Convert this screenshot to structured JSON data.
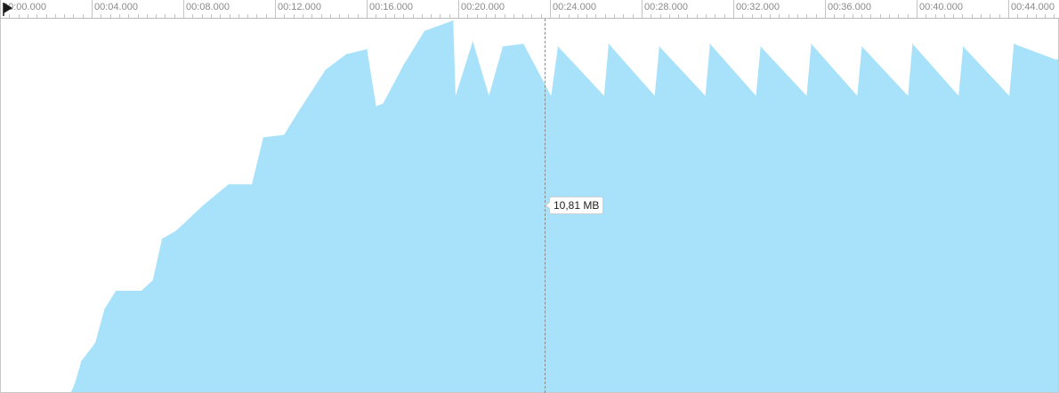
{
  "ruler": {
    "labels": [
      "00:00.000",
      "00:04.000",
      "00:08.000",
      "00:12.000",
      "00:16.000",
      "00:20.000",
      "00:24.000",
      "00:28.000",
      "00:32.000",
      "00:36.000",
      "00:40.000",
      "00:44.000"
    ]
  },
  "cursor": {
    "time_seconds": 23.6,
    "value_label": "10,81 MB"
  },
  "chart_data": {
    "type": "area",
    "series_color": "#a8e2fa",
    "cursor_color": "#8a8a8a",
    "x_unit": "seconds",
    "xlim": [
      0,
      46.0
    ],
    "ylim": [
      0,
      14.3
    ],
    "x": [
      3.05,
      3.2,
      3.5,
      4.1,
      4.5,
      5.0,
      6.1,
      6.6,
      7.0,
      7.6,
      8.8,
      9.9,
      10.9,
      11.4,
      12.3,
      13.0,
      14.1,
      15.0,
      15.9,
      16.3,
      16.6,
      17.5,
      18.4,
      19.65,
      19.75,
      20.5,
      21.2,
      21.8,
      22.7,
      23.9,
      24.2,
      26.2,
      26.4,
      28.4,
      28.6,
      30.6,
      30.8,
      32.8,
      33.0,
      35.0,
      35.2,
      37.2,
      37.4,
      39.4,
      39.6,
      41.6,
      41.8,
      43.8,
      44.0,
      45.8
    ],
    "values": [
      0.0,
      0.3,
      1.2,
      1.9,
      3.2,
      3.9,
      3.9,
      4.3,
      5.9,
      6.2,
      7.2,
      8.0,
      8.0,
      9.8,
      9.9,
      10.9,
      12.4,
      13.0,
      13.2,
      11.0,
      11.1,
      12.6,
      13.9,
      14.3,
      11.4,
      13.5,
      11.4,
      13.3,
      13.4,
      11.4,
      13.3,
      11.4,
      13.4,
      11.4,
      13.3,
      11.4,
      13.4,
      11.4,
      13.3,
      11.4,
      13.4,
      11.4,
      13.3,
      11.4,
      13.4,
      11.4,
      13.3,
      11.4,
      13.4,
      12.8
    ]
  }
}
